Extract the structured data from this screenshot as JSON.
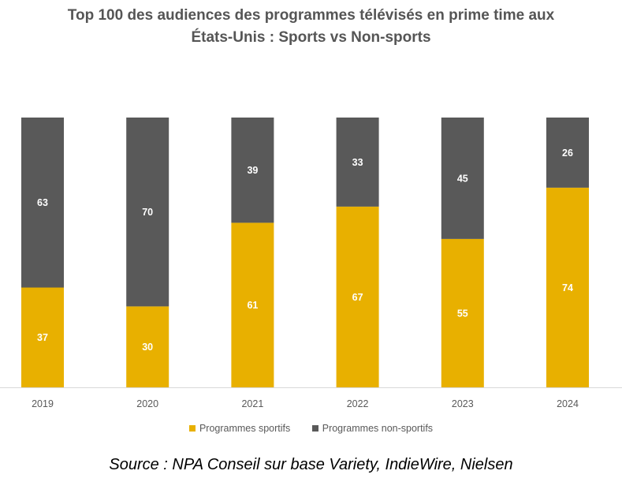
{
  "chart_data": {
    "type": "bar",
    "stacked": true,
    "title_lines": [
      "Top 100 des audiences des programmes télévisés en prime time aux",
      "États-Unis : Sports vs Non-sports"
    ],
    "categories": [
      "2019",
      "2020",
      "2021",
      "2022",
      "2023",
      "2024"
    ],
    "series": [
      {
        "name": "Programmes sportifs",
        "color": "#E8B000",
        "values": [
          37,
          30,
          61,
          67,
          55,
          74
        ]
      },
      {
        "name": "Programmes non-sportifs",
        "color": "#595959",
        "values": [
          63,
          70,
          39,
          33,
          45,
          26
        ]
      }
    ],
    "ylim": [
      0,
      100
    ],
    "grid": false,
    "legend_position": "bottom",
    "source": "Source : NPA Conseil sur base Variety, IndieWire, Nielsen"
  }
}
